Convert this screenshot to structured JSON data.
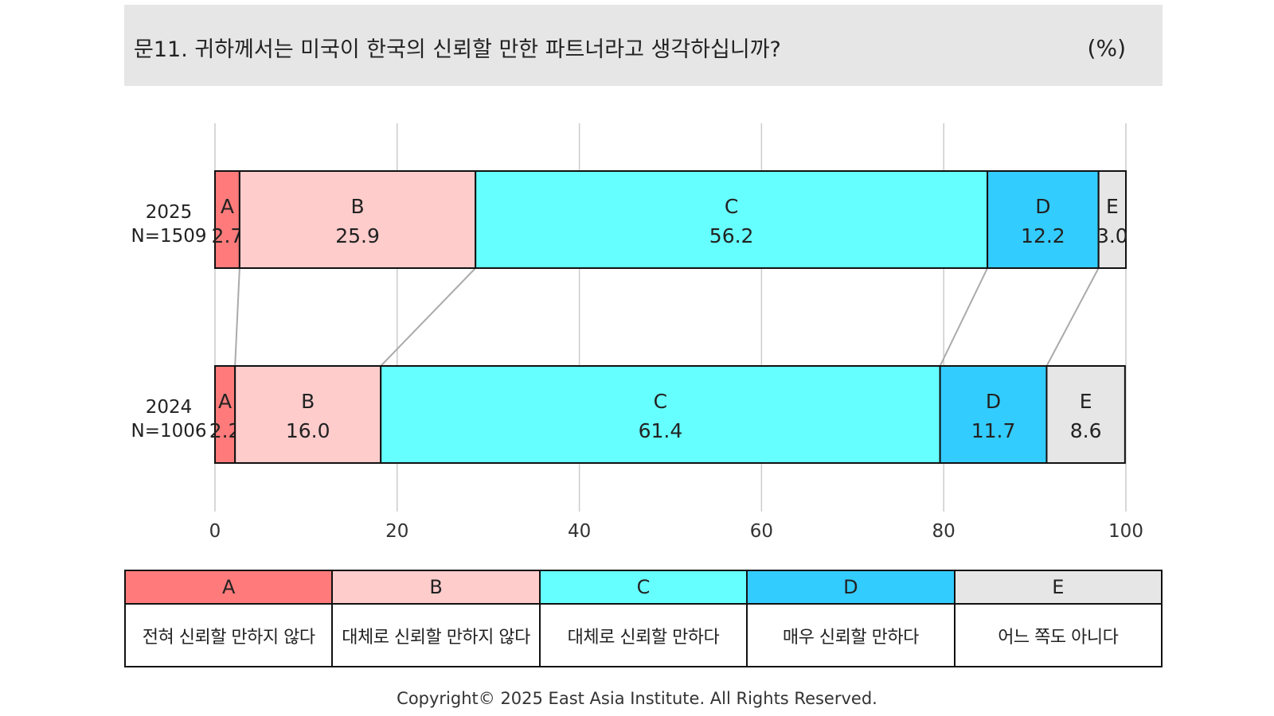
{
  "header": {
    "title": "문11. 귀하께서는 미국이 한국의 신뢰할 만한 파트너라고 생각하십니까?",
    "unit": "(%)"
  },
  "chart_data": {
    "type": "bar",
    "orientation": "horizontal",
    "stacked": true,
    "categories": [
      {
        "year": "2025",
        "n": "N=1509"
      },
      {
        "year": "2024",
        "n": "N=1006"
      }
    ],
    "series": [
      {
        "name": "A",
        "color": "#ff7b7b",
        "values": [
          2.7,
          2.2
        ]
      },
      {
        "name": "B",
        "color": "#ffcccc",
        "values": [
          25.9,
          16.0
        ]
      },
      {
        "name": "C",
        "color": "#66ffff",
        "values": [
          56.2,
          61.4
        ]
      },
      {
        "name": "D",
        "color": "#33ccff",
        "values": [
          12.2,
          11.7
        ]
      },
      {
        "name": "E",
        "color": "#e6e6e6",
        "values": [
          3.0,
          8.6
        ]
      }
    ],
    "value_labels": [
      [
        "2.7",
        "25.9",
        "56.2",
        "12.2",
        "3.0"
      ],
      [
        "2.2",
        "16.0",
        "61.4",
        "11.7",
        "8.6"
      ]
    ],
    "xlim": [
      0,
      100
    ],
    "xticks": [
      0,
      20,
      40,
      60,
      80,
      100
    ],
    "grid": true,
    "connector_lines": true
  },
  "legend": [
    {
      "key": "A",
      "label": "전혀 신뢰할 만하지 않다",
      "color": "#ff7b7b"
    },
    {
      "key": "B",
      "label": "대체로 신뢰할 만하지 않다",
      "color": "#ffcccc"
    },
    {
      "key": "C",
      "label": "대체로 신뢰할 만하다",
      "color": "#66ffff"
    },
    {
      "key": "D",
      "label": "매우 신뢰할 만하다",
      "color": "#33ccff"
    },
    {
      "key": "E",
      "label": "어느 쪽도 아니다",
      "color": "#e6e6e6"
    }
  ],
  "copyright": "Copyright© 2025 East Asia Institute. All Rights Reserved."
}
